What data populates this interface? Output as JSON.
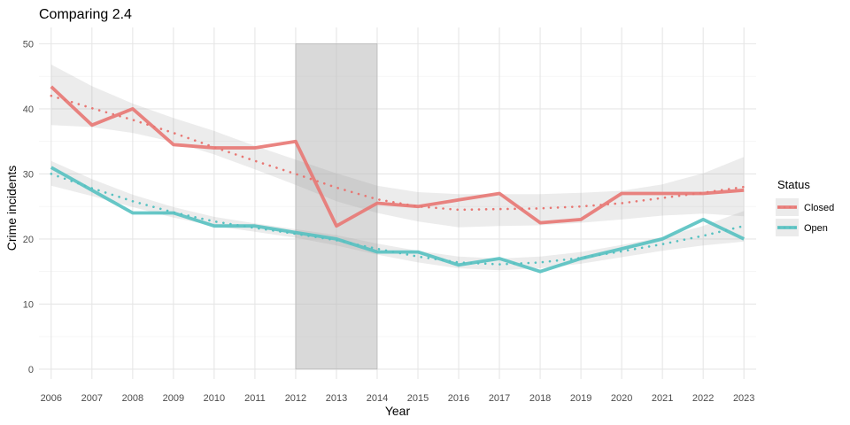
{
  "chart_data": {
    "type": "line",
    "title": "Comparing 2.4",
    "xlabel": "Year",
    "ylabel": "Crime incidents",
    "x": [
      2006,
      2007,
      2008,
      2009,
      2010,
      2011,
      2012,
      2013,
      2014,
      2015,
      2016,
      2017,
      2018,
      2019,
      2020,
      2021,
      2022,
      2023
    ],
    "xlim": [
      2005.7,
      2023.3
    ],
    "ylim": [
      -1.5,
      52.5
    ],
    "yticks": [
      0,
      10,
      20,
      30,
      40,
      50
    ],
    "grid": true,
    "highlight_band": {
      "x": [
        2012,
        2014
      ],
      "y": [
        0,
        50
      ],
      "color": "#bfbfbf"
    },
    "legend": {
      "title": "Status",
      "position": "right"
    },
    "series": [
      {
        "name": "Closed",
        "color": "#e87773",
        "values": [
          43.4,
          37.5,
          40.0,
          34.5,
          34.0,
          34.0,
          35.0,
          22.0,
          25.5,
          25.0,
          26.0,
          27.0,
          22.5,
          23.0,
          27.0,
          27.0,
          27.0,
          27.5
        ],
        "trend": [
          42.0,
          40.1,
          38.3,
          36.3,
          34.1,
          32.0,
          30.0,
          27.9,
          26.1,
          25.0,
          24.5,
          24.6,
          24.7,
          25.0,
          25.5,
          26.3,
          27.1,
          28.0
        ],
        "band_lower": [
          37.5,
          37.2,
          36.3,
          34.9,
          33.0,
          30.7,
          28.3,
          25.8,
          24.0,
          22.7,
          21.8,
          22.0,
          22.1,
          22.5,
          23.0,
          23.6,
          23.9,
          23.5
        ],
        "band_upper": [
          46.8,
          43.5,
          40.8,
          38.6,
          36.6,
          34.3,
          32.2,
          30.1,
          28.2,
          27.2,
          26.9,
          26.9,
          26.9,
          27.1,
          27.4,
          28.4,
          30.1,
          32.6
        ]
      },
      {
        "name": "Open",
        "color": "#56c1c1",
        "values": [
          31.0,
          27.5,
          24.0,
          24.0,
          22.0,
          22.0,
          21.0,
          20.0,
          18.0,
          18.0,
          16.0,
          17.0,
          15.0,
          17.0,
          18.5,
          20.0,
          23.0,
          20.0
        ],
        "trend": [
          30.0,
          27.8,
          25.8,
          24.1,
          22.7,
          21.7,
          20.8,
          19.8,
          18.5,
          17.3,
          16.4,
          16.1,
          16.4,
          17.1,
          18.1,
          19.2,
          20.5,
          22.0
        ],
        "band_lower": [
          28.2,
          26.6,
          24.9,
          23.3,
          22.0,
          21.1,
          20.2,
          19.0,
          17.6,
          16.4,
          15.5,
          15.2,
          15.5,
          16.2,
          17.2,
          18.2,
          19.0,
          19.6
        ],
        "band_upper": [
          32.0,
          29.2,
          26.8,
          24.9,
          23.4,
          22.4,
          21.5,
          20.6,
          19.3,
          18.2,
          17.3,
          17.0,
          17.3,
          18.0,
          19.1,
          20.3,
          22.0,
          24.3
        ]
      }
    ]
  }
}
